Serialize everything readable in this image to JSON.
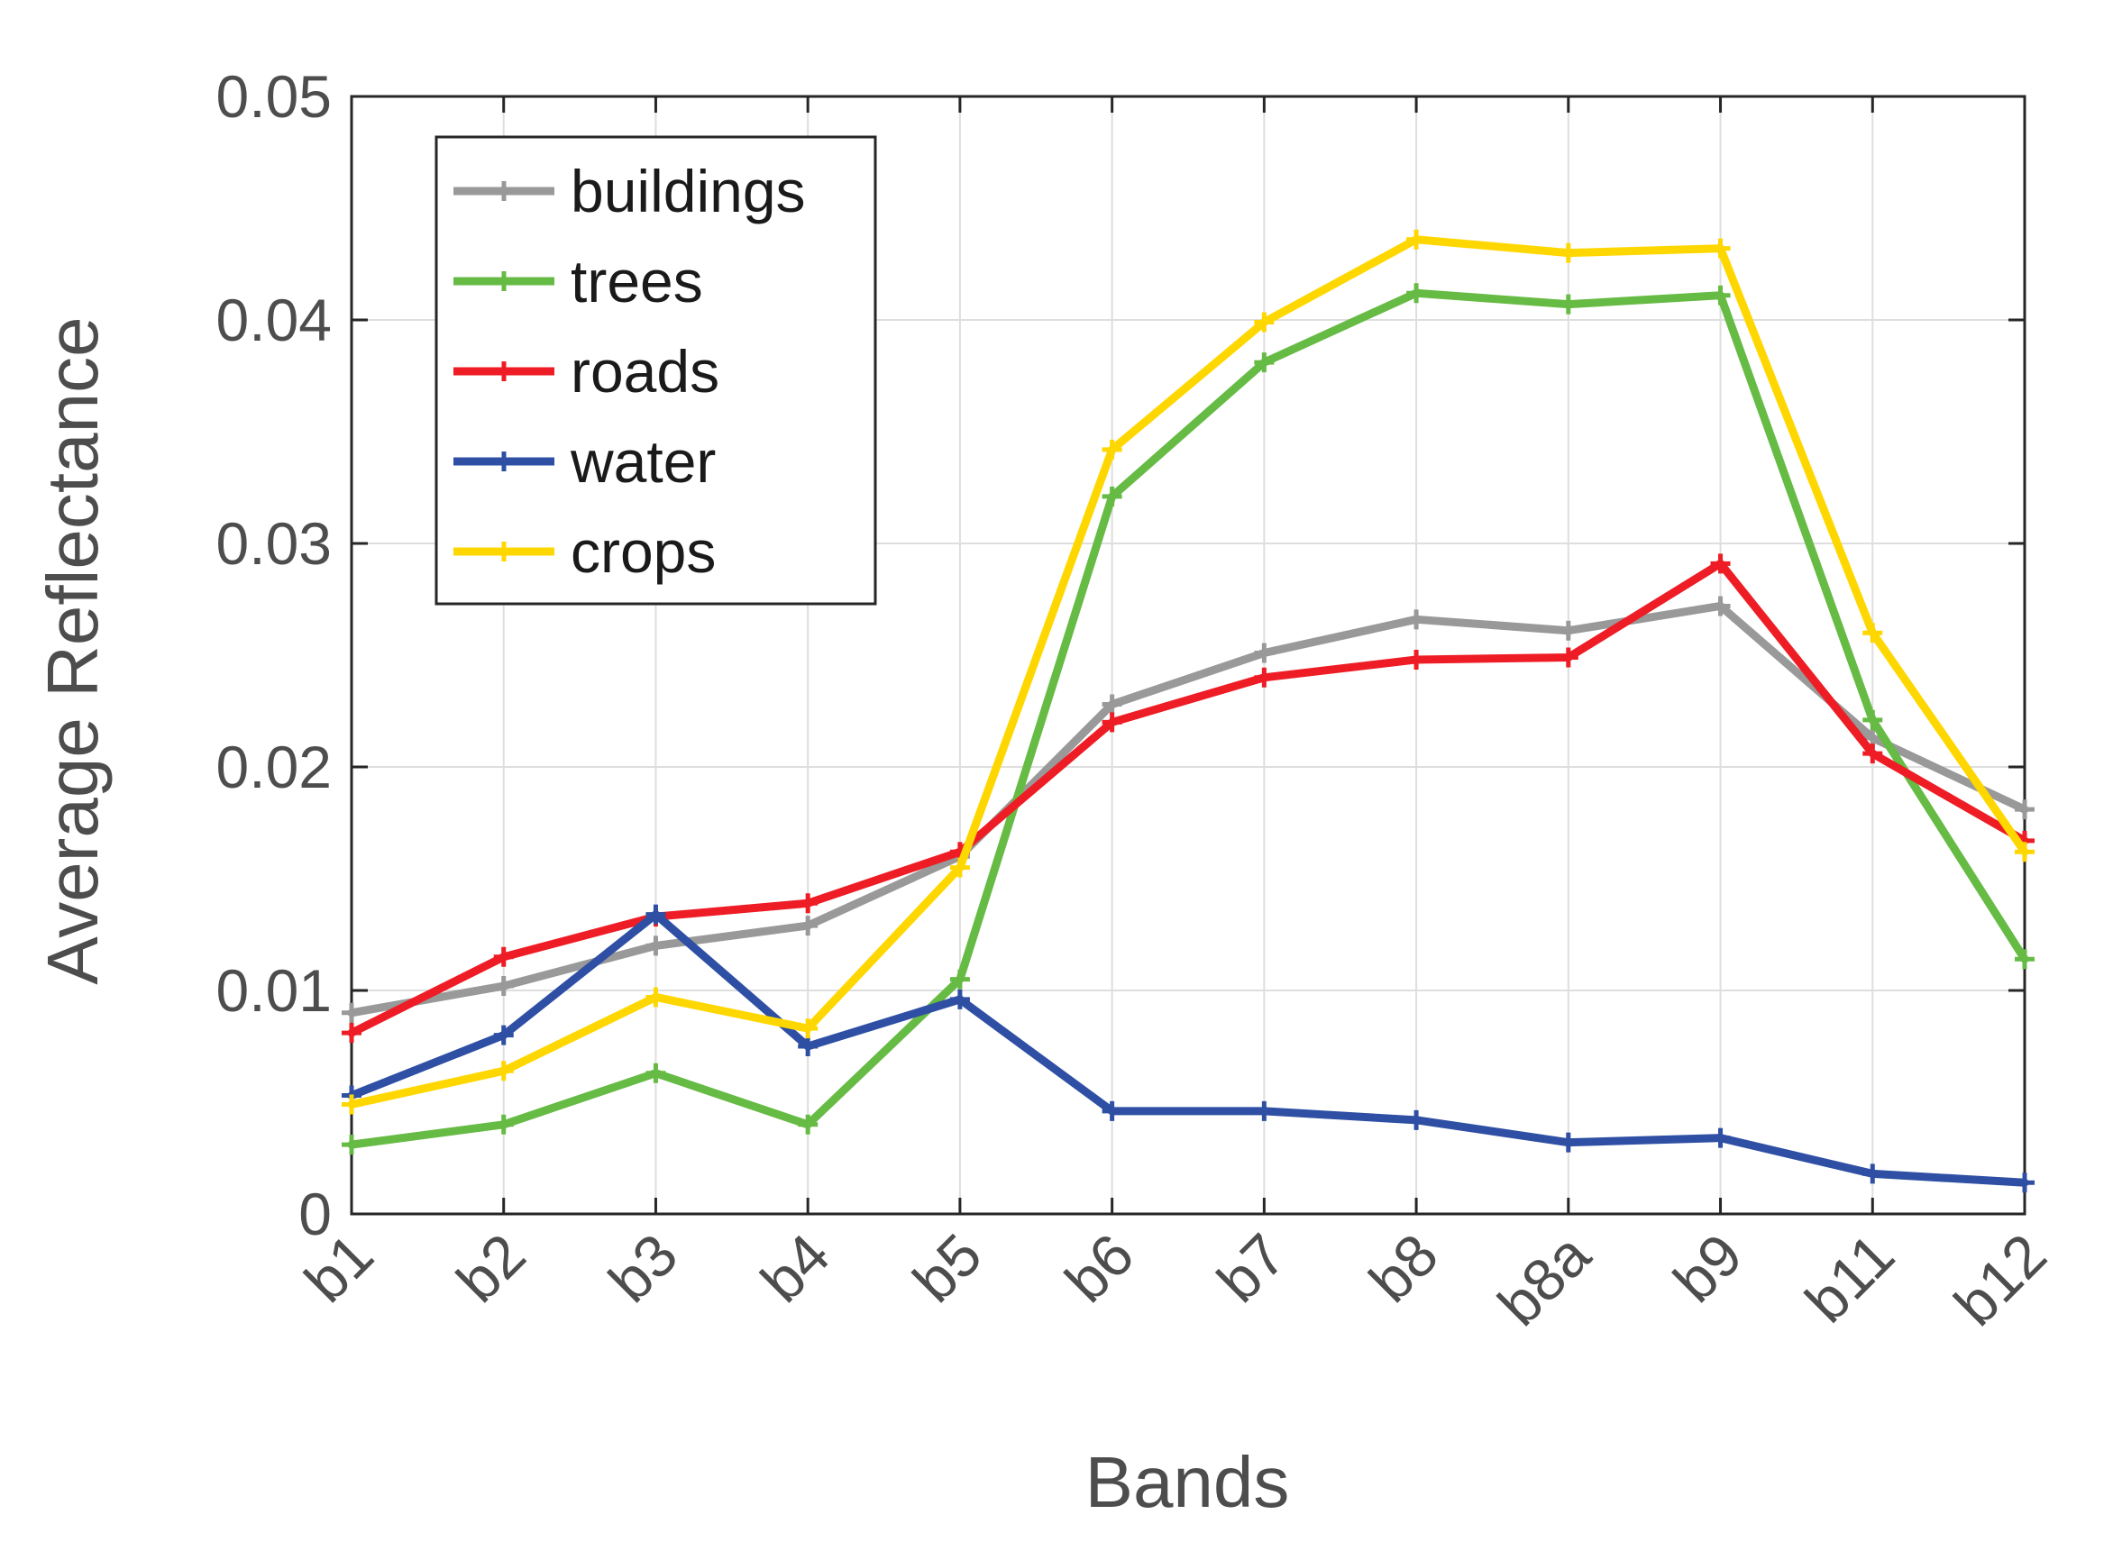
{
  "chart_data": {
    "type": "line",
    "title": "",
    "xlabel": "Bands",
    "ylabel": "Average Reflectance",
    "categories": [
      "b1",
      "b2",
      "b3",
      "b4",
      "b5",
      "b6",
      "b7",
      "b8",
      "b8a",
      "b9",
      "b11",
      "b12"
    ],
    "ylim": [
      0,
      0.05
    ],
    "yticks": [
      0,
      0.01,
      0.02,
      0.03,
      0.04,
      0.05
    ],
    "ytick_labels": [
      "0",
      "0.01",
      "0.02",
      "0.03",
      "0.04",
      "0.05"
    ],
    "grid": true,
    "legend_position": "top-left",
    "series": [
      {
        "name": "buildings",
        "color": "#999999",
        "values": [
          0.009,
          0.0102,
          0.012,
          0.0129,
          0.016,
          0.0228,
          0.0251,
          0.0266,
          0.0261,
          0.0272,
          0.0213,
          0.0181
        ]
      },
      {
        "name": "trees",
        "color": "#66bb44",
        "values": [
          0.0031,
          0.004,
          0.0063,
          0.004,
          0.0105,
          0.0321,
          0.0381,
          0.0412,
          0.0407,
          0.0411,
          0.0221,
          0.0114
        ]
      },
      {
        "name": "roads",
        "color": "#ee1c25",
        "values": [
          0.0081,
          0.0115,
          0.0133,
          0.0139,
          0.0162,
          0.022,
          0.024,
          0.0248,
          0.0249,
          0.0291,
          0.0206,
          0.0167
        ]
      },
      {
        "name": "water",
        "color": "#2e4fa3",
        "values": [
          0.0053,
          0.008,
          0.0134,
          0.0075,
          0.0096,
          0.0046,
          0.0046,
          0.0042,
          0.0032,
          0.0034,
          0.0018,
          0.0014
        ]
      },
      {
        "name": "crops",
        "color": "#ffd700",
        "values": [
          0.0049,
          0.0064,
          0.0097,
          0.0083,
          0.0155,
          0.0342,
          0.0399,
          0.0436,
          0.043,
          0.0432,
          0.026,
          0.0162
        ]
      }
    ]
  }
}
